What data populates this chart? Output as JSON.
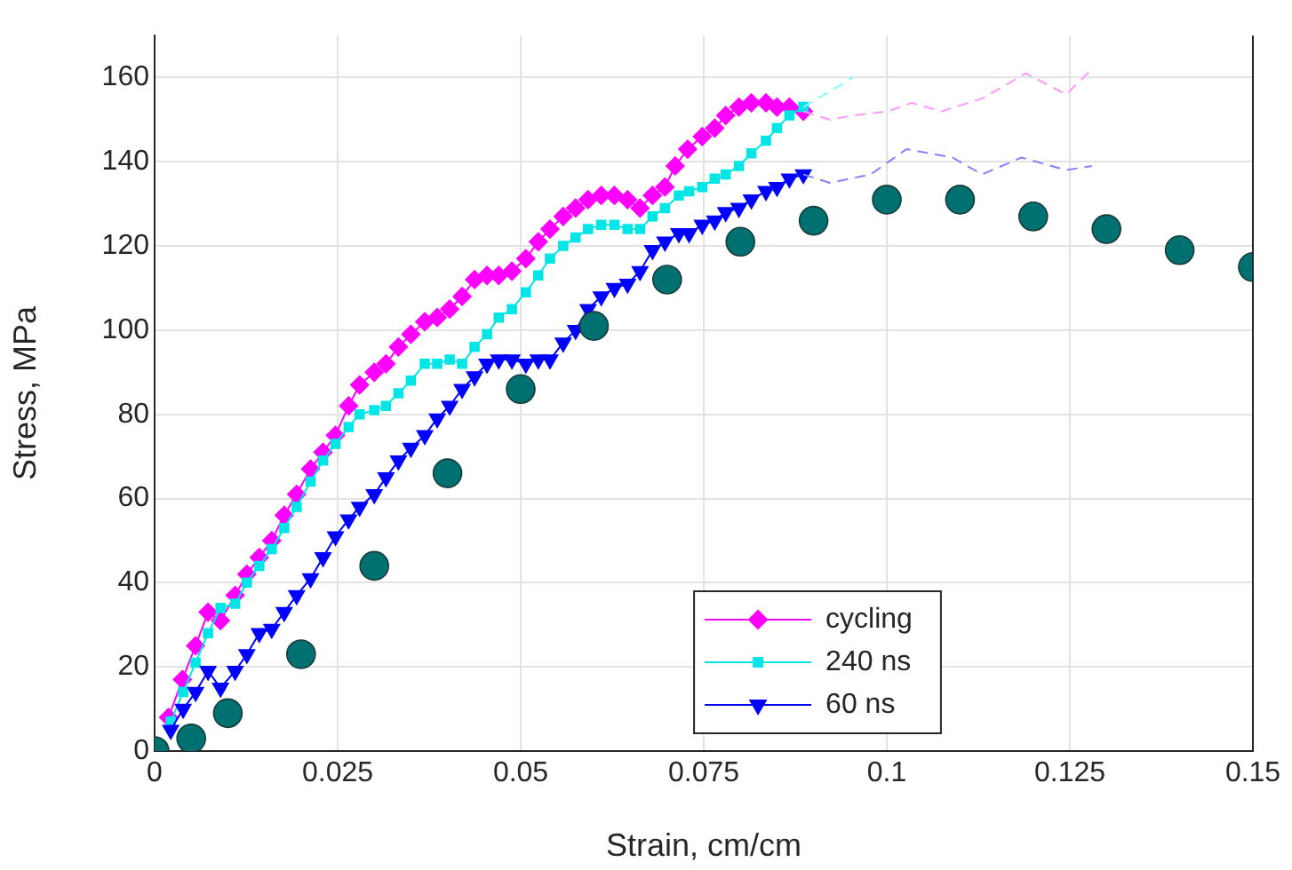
{
  "chart_data": {
    "type": "line",
    "xlabel": "Strain, cm/cm",
    "ylabel": "Stress, MPa",
    "xlim": [
      0,
      0.15
    ],
    "ylim": [
      0,
      170
    ],
    "xticks": [
      0,
      0.025,
      0.05,
      0.075,
      0.1,
      0.125,
      0.15
    ],
    "yticks": [
      0,
      20,
      40,
      60,
      80,
      100,
      120,
      140,
      160
    ],
    "grid": true,
    "legend": "bottom",
    "series": [
      {
        "name": "cycling",
        "color": "#ff00ff",
        "marker": "diamond",
        "line_style": "solid",
        "x": [
          0.0019,
          0.0038,
          0.0056,
          0.0073,
          0.009,
          0.011,
          0.0126,
          0.0143,
          0.016,
          0.0177,
          0.0194,
          0.0213,
          0.023,
          0.0247,
          0.0265,
          0.028,
          0.03,
          0.0316,
          0.0333,
          0.035,
          0.0369,
          0.0386,
          0.0403,
          0.042,
          0.0437,
          0.0454,
          0.047,
          0.0488,
          0.0507,
          0.0524,
          0.054,
          0.0558,
          0.0575,
          0.0592,
          0.061,
          0.0628,
          0.0646,
          0.0663,
          0.068,
          0.0697,
          0.0711,
          0.0728,
          0.0748,
          0.0765,
          0.078,
          0.0798,
          0.0815,
          0.0835,
          0.085,
          0.0867,
          0.0886
        ],
        "values": [
          8,
          17,
          25,
          33,
          31,
          37,
          42,
          46,
          50,
          56,
          61,
          67,
          71,
          75,
          82,
          87,
          90,
          92,
          96,
          99,
          102,
          103,
          105,
          108,
          112,
          113,
          113,
          114,
          117,
          121,
          124,
          127,
          129,
          131,
          132,
          132,
          131,
          129,
          132,
          134,
          139,
          143,
          146,
          148,
          151,
          153,
          154,
          154,
          153,
          153,
          152
        ]
      },
      {
        "name": "240 ns",
        "color": "#00e5e5",
        "marker": "square",
        "line_style": "solid",
        "x": [
          0.0022,
          0.0039,
          0.0056,
          0.0073,
          0.009,
          0.011,
          0.0126,
          0.0143,
          0.016,
          0.0177,
          0.0194,
          0.0213,
          0.023,
          0.0247,
          0.0265,
          0.028,
          0.03,
          0.0316,
          0.0333,
          0.035,
          0.0369,
          0.0386,
          0.0403,
          0.042,
          0.0437,
          0.0454,
          0.047,
          0.0488,
          0.0507,
          0.0524,
          0.054,
          0.0558,
          0.0575,
          0.0592,
          0.061,
          0.0628,
          0.0646,
          0.0663,
          0.068,
          0.0697,
          0.0716,
          0.073,
          0.0748,
          0.0765,
          0.078,
          0.0798,
          0.0815,
          0.0835,
          0.085,
          0.0867,
          0.0886
        ],
        "values": [
          7,
          14,
          21,
          28,
          34,
          35,
          40,
          44,
          48,
          53,
          58,
          64,
          69,
          73,
          77,
          80,
          81,
          82,
          85,
          88,
          92,
          92,
          93,
          92,
          96,
          99,
          103,
          105,
          109,
          113,
          117,
          120,
          122,
          124,
          125,
          125,
          124,
          124,
          127,
          129,
          132,
          133,
          134,
          136,
          137,
          139,
          142,
          145,
          148,
          151,
          153
        ]
      },
      {
        "name": "60 ns",
        "color": "#0000ff",
        "marker": "triangle",
        "line_style": "solid",
        "x": [
          0.0022,
          0.0039,
          0.0056,
          0.0073,
          0.009,
          0.011,
          0.0126,
          0.0143,
          0.016,
          0.0177,
          0.0194,
          0.0213,
          0.023,
          0.0247,
          0.0265,
          0.028,
          0.03,
          0.0316,
          0.0333,
          0.035,
          0.0369,
          0.0386,
          0.0403,
          0.042,
          0.0437,
          0.0454,
          0.047,
          0.0488,
          0.0507,
          0.0524,
          0.054,
          0.0558,
          0.0575,
          0.0592,
          0.061,
          0.0628,
          0.0646,
          0.0663,
          0.068,
          0.0697,
          0.0716,
          0.073,
          0.0748,
          0.0765,
          0.078,
          0.0798,
          0.0815,
          0.0835,
          0.085,
          0.0867,
          0.0886
        ],
        "values": [
          5,
          10,
          14,
          19,
          15,
          19,
          23,
          28,
          29,
          33,
          37,
          41,
          46,
          51,
          55,
          58,
          61,
          65,
          69,
          72,
          75,
          79,
          82,
          86,
          89,
          92,
          93,
          93,
          92,
          93,
          93,
          97,
          100,
          105,
          108,
          110,
          111,
          114,
          119,
          121,
          123,
          123,
          125,
          126,
          128,
          129,
          131,
          133,
          134,
          136,
          137
        ]
      },
      {
        "color": "#007070",
        "type": "scatter",
        "marker": "circle",
        "x": [
          0,
          0.005,
          0.01,
          0.02,
          0.03,
          0.04,
          0.05,
          0.06,
          0.07,
          0.08,
          0.09,
          0.1,
          0.11,
          0.12,
          0.13,
          0.14,
          0.15
        ],
        "values": [
          0,
          3,
          9,
          23,
          44,
          66,
          86,
          101,
          112,
          121,
          126,
          131,
          131,
          127,
          124,
          119,
          115
        ]
      },
      {
        "color": "#ff99ff",
        "marker": "none",
        "line_style": "dashed",
        "x": [
          0.0886,
          0.0922,
          0.0954,
          0.1002,
          0.1034,
          0.1075,
          0.113,
          0.119,
          0.1245,
          0.128
        ],
        "values": [
          152,
          150,
          151,
          152,
          154,
          152,
          155,
          161,
          156,
          162
        ]
      },
      {
        "color": "#8080ff",
        "marker": "none",
        "line_style": "dashed",
        "x": [
          0.0886,
          0.0922,
          0.0978,
          0.1027,
          0.109,
          0.113,
          0.1184,
          0.1245,
          0.128
        ],
        "values": [
          137,
          135,
          137,
          143,
          141,
          137,
          141,
          138,
          139
        ]
      },
      {
        "color": "#80ffff",
        "marker": "none",
        "line_style": "dashed",
        "x": [
          0.0886,
          0.0954
        ],
        "values": [
          153,
          160
        ]
      }
    ]
  }
}
